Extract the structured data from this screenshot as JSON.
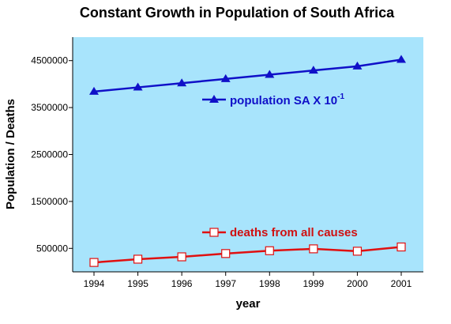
{
  "chart_data": {
    "type": "line",
    "title": "Constant Growth in Population of South Africa",
    "xlabel": "year",
    "ylabel": "Population / Deaths",
    "categories": [
      "1994",
      "1995",
      "1996",
      "1997",
      "1998",
      "1999",
      "2000",
      "2001"
    ],
    "y_ticks": [
      "500000",
      "1500000",
      "2500000",
      "3500000",
      "4500000"
    ],
    "ylim": [
      0,
      5000000
    ],
    "grid": false,
    "background_color": "#a8e4fc",
    "series": [
      {
        "name_main": "population SA X 10",
        "name_exp": "-1",
        "color": "#1010c8",
        "marker": "triangle-filled",
        "values": [
          3840000,
          3930000,
          4020000,
          4110000,
          4200000,
          4290000,
          4380000,
          4520000
        ]
      },
      {
        "name_main": "deaths from all causes",
        "name_exp": "",
        "color": "#e01010",
        "marker": "square-open",
        "values": [
          200000,
          270000,
          320000,
          390000,
          450000,
          490000,
          440000,
          530000
        ]
      }
    ]
  }
}
